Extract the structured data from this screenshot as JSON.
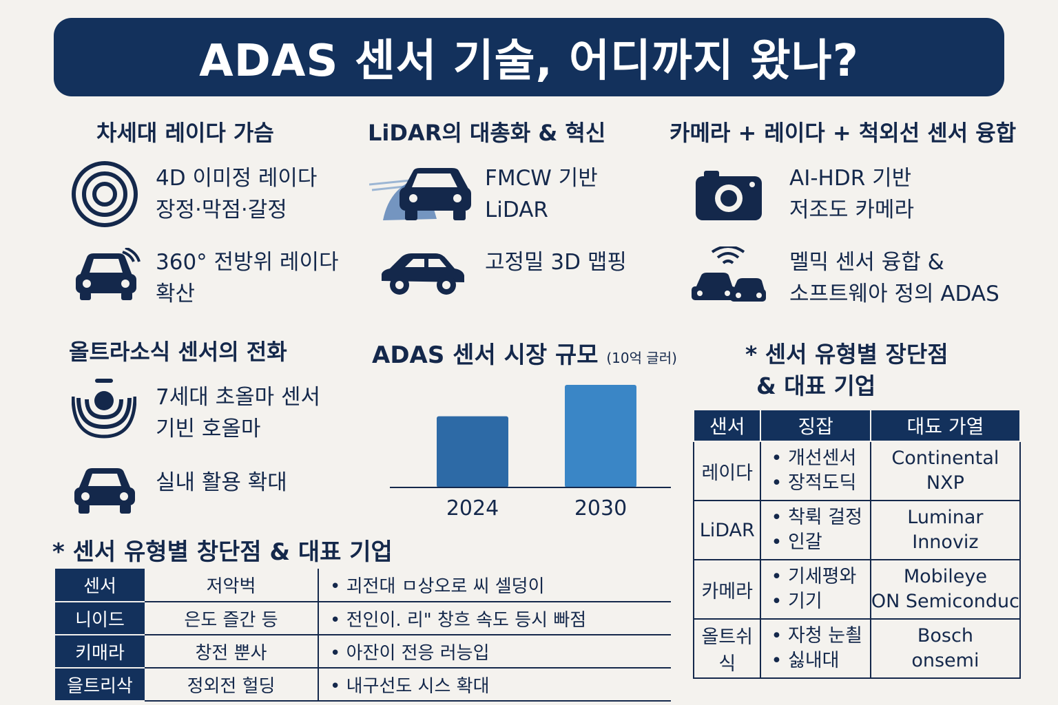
{
  "title": "ADAS 센서 기술, 어디까지 왔나?",
  "sections": {
    "radar": {
      "heading": "차세대 레이다 가슴",
      "items": [
        {
          "icon": "concentric-circles-icon",
          "lines": [
            "4D 이미정 레이다",
            "장정·막점·갈정"
          ]
        },
        {
          "icon": "car-front-signal-icon",
          "lines": [
            "360° 전방위 레이다",
            "확산"
          ]
        }
      ]
    },
    "lidar": {
      "heading": "LiDAR의 대총화 & 혁신",
      "items": [
        {
          "icon": "car-lidar-beam-icon",
          "lines": [
            "FMCW 기반",
            "LiDAR"
          ]
        },
        {
          "icon": "car-side-icon",
          "lines": [
            "고정밀 3D 맵핑"
          ]
        }
      ]
    },
    "camera": {
      "heading": "카메라 + 레이다 + 척외선 센서 융합",
      "items": [
        {
          "icon": "camera-icon",
          "lines": [
            "AI-HDR 기반",
            "저조도 카메라"
          ]
        },
        {
          "icon": "cars-wireless-icon",
          "lines": [
            "멜믹 센서 융합 &",
            "소프트웨아 정의 ADAS"
          ]
        }
      ]
    },
    "ultrasonic": {
      "heading": "올트라소식 센서의 전화",
      "items": [
        {
          "icon": "ultrasonic-sensor-icon",
          "lines": [
            "7세대 초올마 센서",
            "기빈 호올마"
          ]
        },
        {
          "icon": "car-front-icon",
          "lines": [
            "실내 활용 확대"
          ]
        }
      ]
    }
  },
  "chart_data": {
    "type": "bar",
    "title": "ADAS 센서 시장 규모",
    "unit_label": "(10억 글러)",
    "categories": [
      "2024",
      "2030"
    ],
    "values": [
      0.68,
      0.98
    ],
    "ylim": [
      0,
      1
    ],
    "grid": false,
    "colors": [
      "#2d6aa6",
      "#3a86c6"
    ]
  },
  "bottom_table": {
    "heading": "* 센서 유형별 창단점 & 대표 기업",
    "rows": [
      [
        "센서",
        "저악벅",
        "• 괴전대 ㅁ상오로 씨 셀덩이"
      ],
      [
        "니이드",
        "은도 즐간 등",
        "• 전인이. 리\" 창흐 속도 등시 빠점"
      ],
      [
        "키매라",
        "창전 뿐사",
        "• 아잔이 전응 러능입"
      ],
      [
        "을트리삭",
        "정외전 헐딩",
        "• 내구선도 시스 확대"
      ]
    ]
  },
  "right_table": {
    "heading_line1": "* 센서 유형별 장단점",
    "heading_line2": "& 대표 기업",
    "headers": [
      "샌서",
      "징잡",
      "대됴 가열"
    ],
    "rows": [
      {
        "sensor": "레이다",
        "features": [
          "• 개선센서",
          "• 장적도딕"
        ],
        "companies": [
          "Continental",
          "NXP"
        ]
      },
      {
        "sensor": "LiDAR",
        "features": [
          "• 착뤽 걸정",
          "• 인갈"
        ],
        "companies": [
          "Luminar",
          "Innoviz"
        ]
      },
      {
        "sensor": "카메라",
        "features": [
          "• 기세평와",
          "• 기기"
        ],
        "companies": [
          "Mobileye",
          "ON Semiconduc"
        ]
      },
      {
        "sensor": "올트쉬식",
        "features": [
          "• 자청 눈쵤",
          "• 싫내대"
        ],
        "companies": [
          "Bosch",
          "onsemi"
        ]
      }
    ]
  }
}
